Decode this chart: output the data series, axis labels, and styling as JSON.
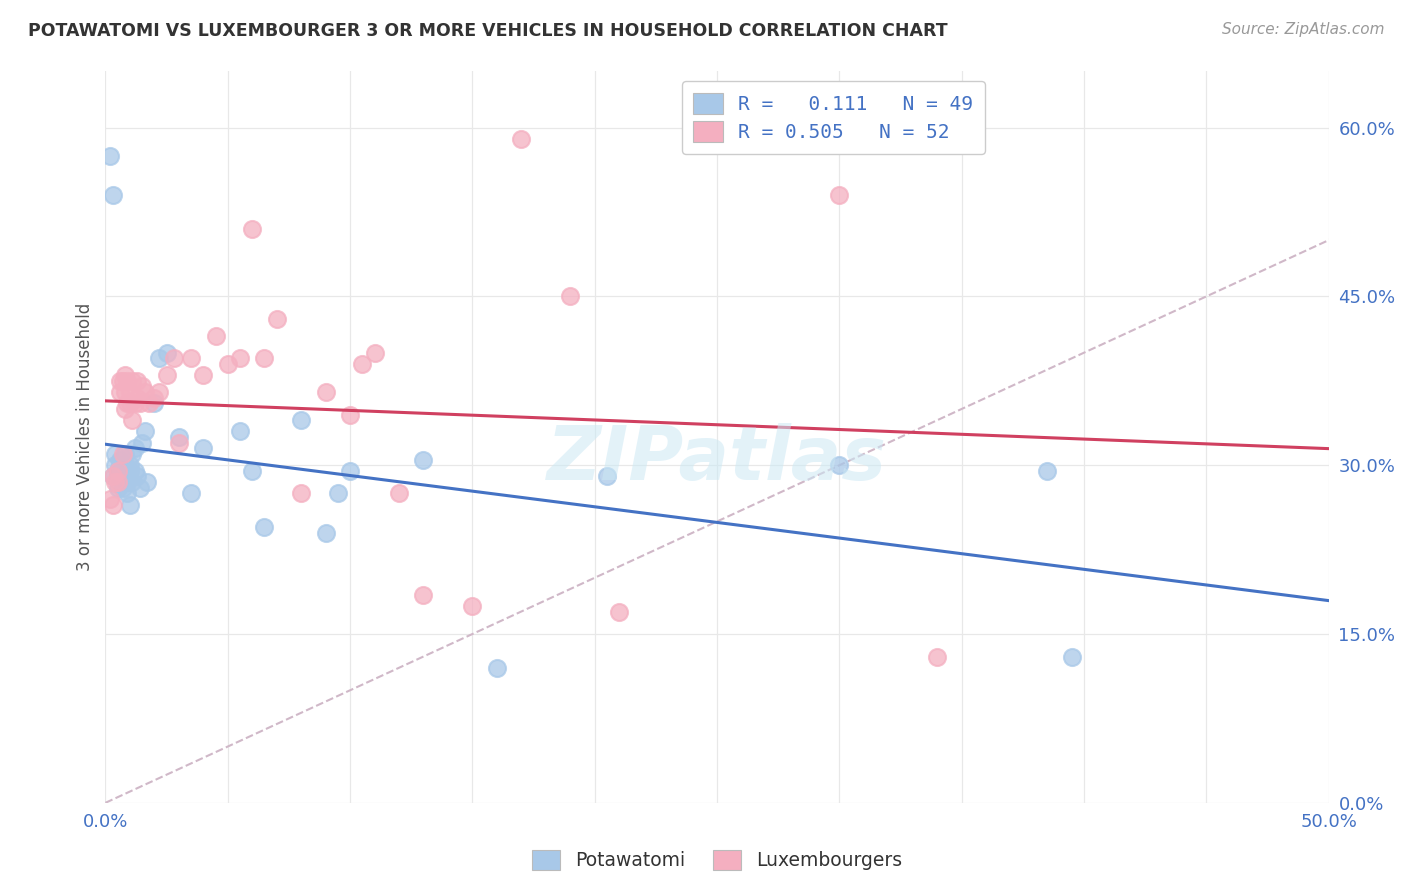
{
  "title": "POTAWATOMI VS LUXEMBOURGER 3 OR MORE VEHICLES IN HOUSEHOLD CORRELATION CHART",
  "source": "Source: ZipAtlas.com",
  "ylabel": "3 or more Vehicles in Household",
  "xlim": [
    0.0,
    0.5
  ],
  "ylim": [
    0.0,
    0.65
  ],
  "xtick_positions": [
    0.0,
    0.05,
    0.1,
    0.15,
    0.2,
    0.25,
    0.3,
    0.35,
    0.4,
    0.45,
    0.5
  ],
  "xticklabels": [
    "0.0%",
    "",
    "",
    "",
    "",
    "",
    "",
    "",
    "",
    "",
    "50.0%"
  ],
  "ytick_positions": [
    0.0,
    0.15,
    0.3,
    0.45,
    0.6
  ],
  "yticklabels": [
    "0.0%",
    "15.0%",
    "30.0%",
    "45.0%",
    "60.0%"
  ],
  "legend_R1": "0.111",
  "legend_N1": "49",
  "legend_R2": "0.505",
  "legend_N2": "52",
  "legend_labels": [
    "Potawatomi",
    "Luxembourgers"
  ],
  "potawatomi_color": "#a8c8e8",
  "luxembourger_color": "#f4afc0",
  "potawatomi_line_color": "#4472c4",
  "luxembourger_line_color": "#d04060",
  "diagonal_color": "#d0b8c8",
  "background_color": "#ffffff",
  "grid_color": "#e8e8e8",
  "watermark": "ZIPatlas",
  "pot_x": [
    0.002,
    0.003,
    0.003,
    0.004,
    0.004,
    0.005,
    0.005,
    0.005,
    0.006,
    0.006,
    0.006,
    0.007,
    0.007,
    0.008,
    0.008,
    0.008,
    0.009,
    0.009,
    0.01,
    0.01,
    0.01,
    0.011,
    0.011,
    0.012,
    0.012,
    0.013,
    0.014,
    0.015,
    0.016,
    0.017,
    0.02,
    0.022,
    0.025,
    0.03,
    0.035,
    0.04,
    0.055,
    0.06,
    0.065,
    0.08,
    0.09,
    0.095,
    0.1,
    0.13,
    0.16,
    0.205,
    0.3,
    0.385,
    0.395
  ],
  "pot_y": [
    0.575,
    0.54,
    0.29,
    0.3,
    0.31,
    0.295,
    0.28,
    0.29,
    0.3,
    0.295,
    0.305,
    0.295,
    0.28,
    0.285,
    0.3,
    0.31,
    0.275,
    0.285,
    0.295,
    0.3,
    0.265,
    0.31,
    0.285,
    0.295,
    0.315,
    0.29,
    0.28,
    0.32,
    0.33,
    0.285,
    0.355,
    0.395,
    0.4,
    0.325,
    0.275,
    0.315,
    0.33,
    0.295,
    0.245,
    0.34,
    0.24,
    0.275,
    0.295,
    0.305,
    0.12,
    0.29,
    0.3,
    0.295,
    0.13
  ],
  "lux_x": [
    0.002,
    0.003,
    0.003,
    0.004,
    0.005,
    0.005,
    0.006,
    0.006,
    0.007,
    0.007,
    0.008,
    0.008,
    0.008,
    0.009,
    0.009,
    0.01,
    0.01,
    0.011,
    0.011,
    0.012,
    0.013,
    0.013,
    0.014,
    0.015,
    0.016,
    0.018,
    0.02,
    0.022,
    0.025,
    0.028,
    0.03,
    0.035,
    0.04,
    0.045,
    0.05,
    0.055,
    0.06,
    0.065,
    0.07,
    0.08,
    0.09,
    0.1,
    0.105,
    0.11,
    0.12,
    0.13,
    0.15,
    0.17,
    0.19,
    0.21,
    0.3,
    0.34
  ],
  "lux_y": [
    0.27,
    0.29,
    0.265,
    0.285,
    0.285,
    0.295,
    0.375,
    0.365,
    0.375,
    0.31,
    0.35,
    0.365,
    0.38,
    0.355,
    0.375,
    0.355,
    0.365,
    0.375,
    0.34,
    0.355,
    0.36,
    0.375,
    0.355,
    0.37,
    0.365,
    0.355,
    0.36,
    0.365,
    0.38,
    0.395,
    0.32,
    0.395,
    0.38,
    0.415,
    0.39,
    0.395,
    0.51,
    0.395,
    0.43,
    0.275,
    0.365,
    0.345,
    0.39,
    0.4,
    0.275,
    0.185,
    0.175,
    0.59,
    0.45,
    0.17,
    0.54,
    0.13
  ]
}
